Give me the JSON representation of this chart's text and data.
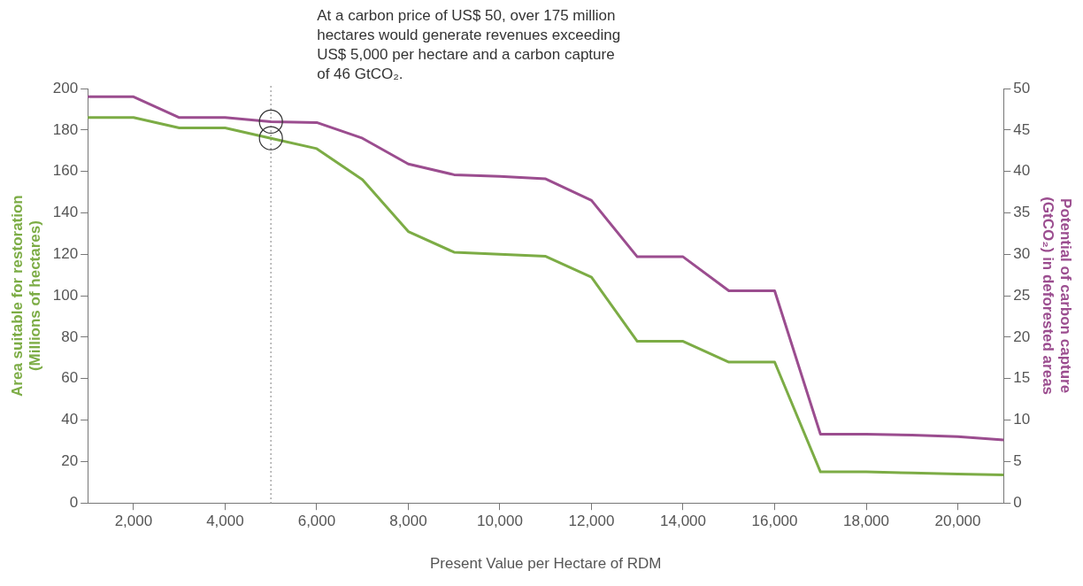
{
  "chart_data": {
    "type": "line",
    "xlabel": "Present Value per Hectare of RDM",
    "ylabel": "Area suitable for restoration (Millions of hectares)",
    "y2label": "Potential of carbon capture (GtCO₂) in deforested areas",
    "x": [
      1000,
      2000,
      3000,
      4000,
      5000,
      6000,
      7000,
      8000,
      9000,
      10000,
      11000,
      12000,
      13000,
      14000,
      15000,
      16000,
      17000,
      18000,
      19000,
      20000,
      21000
    ],
    "series": [
      {
        "color": "#7cac45",
        "values": [
          186,
          186,
          181,
          181,
          176,
          171,
          156,
          131,
          121,
          120,
          119,
          109,
          78,
          78,
          68,
          68,
          15,
          15,
          14.5,
          14,
          13.5
        ]
      },
      {
        "color": "#9b4d8f",
        "axis": "y2",
        "values": [
          49,
          49,
          46.5,
          46.5,
          46,
          45.9,
          44,
          40.9,
          39.6,
          39.4,
          39.1,
          36.5,
          29.7,
          29.7,
          25.6,
          25.6,
          8.3,
          8.3,
          8.2,
          8,
          7.6
        ]
      }
    ],
    "xlim": [
      1000,
      21000
    ],
    "xticks": [
      {
        "value": 2000,
        "label": "2,000"
      },
      {
        "value": 4000,
        "label": "4,000"
      },
      {
        "value": 6000,
        "label": "6,000"
      },
      {
        "value": 8000,
        "label": "8,000"
      },
      {
        "value": 10000,
        "label": "10,000"
      },
      {
        "value": 12000,
        "label": "12,000"
      },
      {
        "value": 14000,
        "label": "14,000"
      },
      {
        "value": 16000,
        "label": "16,000"
      },
      {
        "value": 18000,
        "label": "18,000"
      },
      {
        "value": 20000,
        "label": "20,000"
      }
    ],
    "ylim": [
      0,
      200
    ],
    "yticks": [
      0,
      20,
      40,
      60,
      80,
      100,
      120,
      140,
      160,
      180,
      200
    ],
    "y2lim": [
      0,
      50
    ],
    "y2ticks": [
      0,
      5,
      10,
      15,
      20,
      25,
      30,
      35,
      40,
      45,
      50
    ],
    "ref_lines": [
      {
        "axis": "x",
        "value": 5000,
        "color": "#aaaaaa",
        "line_style": "dotted"
      }
    ],
    "annotations": [
      "At a carbon price of US$ 50, over 175 million hectares would generate revenues exceeding US$ 5,000 per hectare and a carbon capture of 46 GtCO₂."
    ],
    "grid": false,
    "legend": false,
    "marker": "none",
    "line_style": "solid"
  }
}
